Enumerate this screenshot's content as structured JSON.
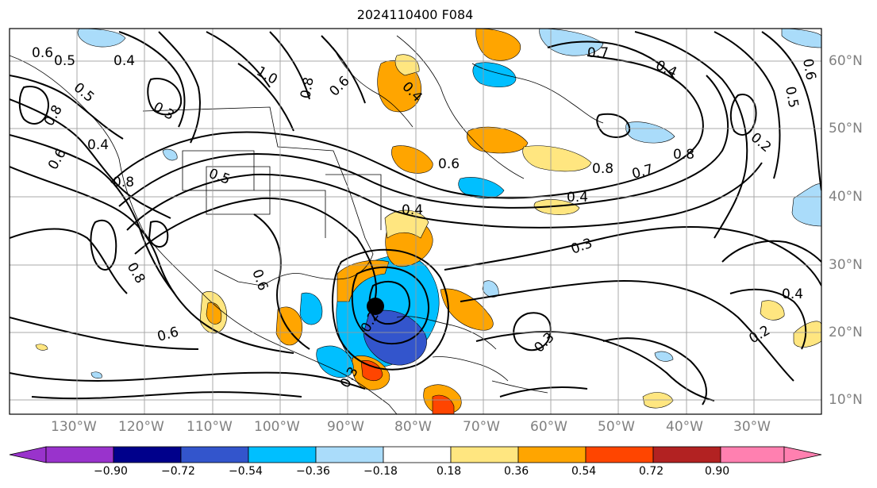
{
  "title": "2024110400 F084",
  "map": {
    "lon_range": [
      -140,
      -20
    ],
    "lat_range": [
      8,
      65
    ],
    "lon_labels": [
      "130°W",
      "120°W",
      "110°W",
      "100°W",
      "90°W",
      "80°W",
      "70°W",
      "60°W",
      "50°W",
      "40°W",
      "30°W"
    ],
    "lat_labels": [
      "60°N",
      "50°N",
      "40°N",
      "30°N",
      "20°N",
      "10°N"
    ],
    "grid": true,
    "contour_labels": [
      "0.6",
      "0.5",
      "0.4",
      "0.5",
      "0.3",
      "0.8",
      "0.4",
      "0.6",
      "0.8",
      "0.5",
      "1.0",
      "0.8",
      "0.6",
      "0.4",
      "0.7",
      "0.4",
      "0.5",
      "0.6",
      "0.2",
      "0.8",
      "0.7",
      "0.8",
      "0.4",
      "0.6",
      "0.3",
      "0.4",
      "0.2",
      "0.3",
      "0.8",
      "0.6",
      "0.6",
      "0.2",
      "0.3",
      "0.4"
    ]
  },
  "colorbar": {
    "tick_labels": [
      "−0.90",
      "−0.72",
      "−0.54",
      "−0.36",
      "−0.18",
      "0.18",
      "0.36",
      "0.54",
      "0.72",
      "0.90"
    ],
    "colors": [
      "#9933cc",
      "#00008b",
      "#3355cc",
      "#00bfff",
      "#aadcfa",
      "#ffffff",
      "#ffe680",
      "#ffa500",
      "#ff4500",
      "#b22222",
      "#ff80b0"
    ]
  }
}
